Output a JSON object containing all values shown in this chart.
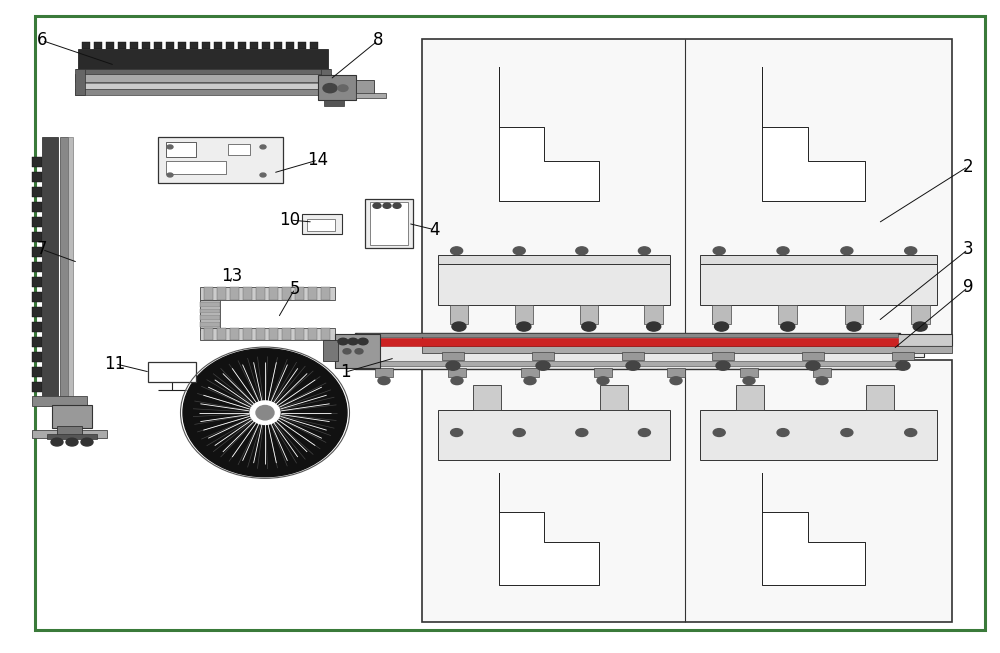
{
  "bg_color": "#ffffff",
  "border_color": "#3a7a3a",
  "line_color": "#222222",
  "border_lw": 2.2,
  "fig_width": 10.0,
  "fig_height": 6.53,
  "label_positions": {
    "6": [
      0.042,
      0.938,
      0.115,
      0.9
    ],
    "8": [
      0.378,
      0.938,
      0.33,
      0.878
    ],
    "7": [
      0.042,
      0.618,
      0.078,
      0.598
    ],
    "14": [
      0.318,
      0.755,
      0.273,
      0.735
    ],
    "4": [
      0.435,
      0.648,
      0.408,
      0.658
    ],
    "10": [
      0.29,
      0.663,
      0.313,
      0.66
    ],
    "13": [
      0.232,
      0.578,
      0.23,
      0.565
    ],
    "1": [
      0.345,
      0.43,
      0.395,
      0.452
    ],
    "5": [
      0.295,
      0.558,
      0.278,
      0.513
    ],
    "11": [
      0.115,
      0.443,
      0.15,
      0.43
    ],
    "2": [
      0.968,
      0.745,
      0.878,
      0.658
    ],
    "3": [
      0.968,
      0.618,
      0.878,
      0.508
    ],
    "9": [
      0.968,
      0.56,
      0.893,
      0.465
    ]
  }
}
